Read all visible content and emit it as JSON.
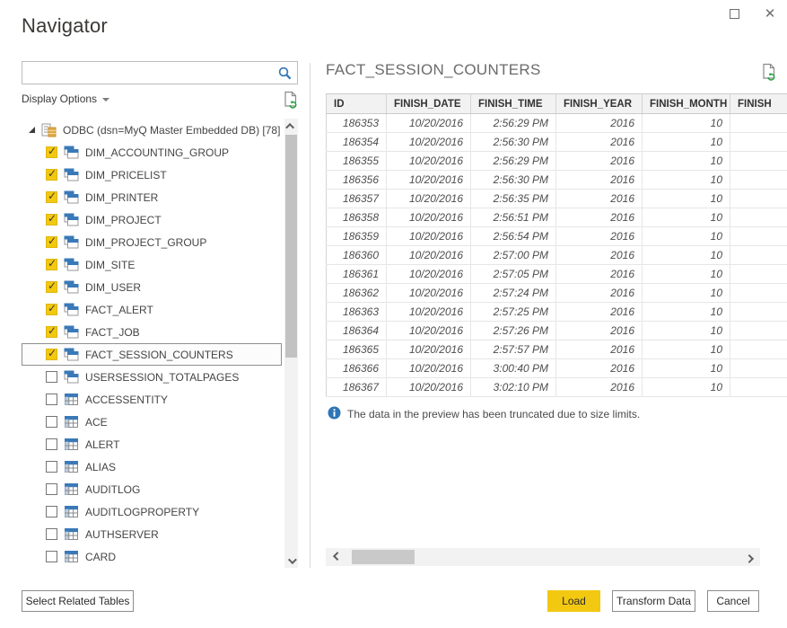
{
  "window": {
    "title": "Navigator"
  },
  "left_panel": {
    "search": {
      "value": "",
      "placeholder": ""
    },
    "display_options_label": "Display Options",
    "tree": {
      "root_label": "ODBC (dsn=MyQ Master Embedded DB) [78]",
      "items": [
        {
          "label": "DIM_ACCOUNTING_GROUP",
          "checked": true,
          "icon": "view",
          "selected": false
        },
        {
          "label": "DIM_PRICELIST",
          "checked": true,
          "icon": "view",
          "selected": false
        },
        {
          "label": "DIM_PRINTER",
          "checked": true,
          "icon": "view",
          "selected": false
        },
        {
          "label": "DIM_PROJECT",
          "checked": true,
          "icon": "view",
          "selected": false
        },
        {
          "label": "DIM_PROJECT_GROUP",
          "checked": true,
          "icon": "view",
          "selected": false
        },
        {
          "label": "DIM_SITE",
          "checked": true,
          "icon": "view",
          "selected": false
        },
        {
          "label": "DIM_USER",
          "checked": true,
          "icon": "view",
          "selected": false
        },
        {
          "label": "FACT_ALERT",
          "checked": true,
          "icon": "view",
          "selected": false
        },
        {
          "label": "FACT_JOB",
          "checked": true,
          "icon": "view",
          "selected": false
        },
        {
          "label": "FACT_SESSION_COUNTERS",
          "checked": true,
          "icon": "view",
          "selected": true
        },
        {
          "label": "USERSESSION_TOTALPAGES",
          "checked": false,
          "icon": "view",
          "selected": false
        },
        {
          "label": "ACCESSENTITY",
          "checked": false,
          "icon": "table",
          "selected": false
        },
        {
          "label": "ACE",
          "checked": false,
          "icon": "table",
          "selected": false
        },
        {
          "label": "ALERT",
          "checked": false,
          "icon": "table",
          "selected": false
        },
        {
          "label": "ALIAS",
          "checked": false,
          "icon": "table",
          "selected": false
        },
        {
          "label": "AUDITLOG",
          "checked": false,
          "icon": "table",
          "selected": false
        },
        {
          "label": "AUDITLOGPROPERTY",
          "checked": false,
          "icon": "table",
          "selected": false
        },
        {
          "label": "AUTHSERVER",
          "checked": false,
          "icon": "table",
          "selected": false
        },
        {
          "label": "CARD",
          "checked": false,
          "icon": "table",
          "selected": false
        }
      ]
    }
  },
  "preview": {
    "title": "FACT_SESSION_COUNTERS",
    "truncation_notice": "The data in the preview has been truncated due to size limits.",
    "table": {
      "columns": [
        "ID",
        "FINISH_DATE",
        "FINISH_TIME",
        "FINISH_YEAR",
        "FINISH_MONTH",
        "FINISH"
      ],
      "rows": [
        [
          "186353",
          "10/20/2016",
          "2:56:29 PM",
          "2016",
          "10",
          ""
        ],
        [
          "186354",
          "10/20/2016",
          "2:56:30 PM",
          "2016",
          "10",
          ""
        ],
        [
          "186355",
          "10/20/2016",
          "2:56:29 PM",
          "2016",
          "10",
          ""
        ],
        [
          "186356",
          "10/20/2016",
          "2:56:30 PM",
          "2016",
          "10",
          ""
        ],
        [
          "186357",
          "10/20/2016",
          "2:56:35 PM",
          "2016",
          "10",
          ""
        ],
        [
          "186358",
          "10/20/2016",
          "2:56:51 PM",
          "2016",
          "10",
          ""
        ],
        [
          "186359",
          "10/20/2016",
          "2:56:54 PM",
          "2016",
          "10",
          ""
        ],
        [
          "186360",
          "10/20/2016",
          "2:57:00 PM",
          "2016",
          "10",
          ""
        ],
        [
          "186361",
          "10/20/2016",
          "2:57:05 PM",
          "2016",
          "10",
          ""
        ],
        [
          "186362",
          "10/20/2016",
          "2:57:24 PM",
          "2016",
          "10",
          ""
        ],
        [
          "186363",
          "10/20/2016",
          "2:57:25 PM",
          "2016",
          "10",
          ""
        ],
        [
          "186364",
          "10/20/2016",
          "2:57:26 PM",
          "2016",
          "10",
          ""
        ],
        [
          "186365",
          "10/20/2016",
          "2:57:57 PM",
          "2016",
          "10",
          ""
        ],
        [
          "186366",
          "10/20/2016",
          "3:00:40 PM",
          "2016",
          "10",
          ""
        ],
        [
          "186367",
          "10/20/2016",
          "3:02:10 PM",
          "2016",
          "10",
          ""
        ]
      ]
    }
  },
  "footer": {
    "select_related_label": "Select Related Tables",
    "load_label": "Load",
    "transform_label": "Transform Data",
    "cancel_label": "Cancel"
  },
  "icons": {
    "search": "search-icon",
    "refresh_preview": "refresh-document-icon",
    "info": "info-icon",
    "view_node": "view-icon",
    "table_node": "table-icon",
    "database_node": "odbc-database-icon"
  },
  "colors": {
    "accent_yellow": "#f2c811",
    "icon_blue": "#3a79b8",
    "info_blue": "#2e75b6",
    "refresh_green": "#27a343"
  }
}
